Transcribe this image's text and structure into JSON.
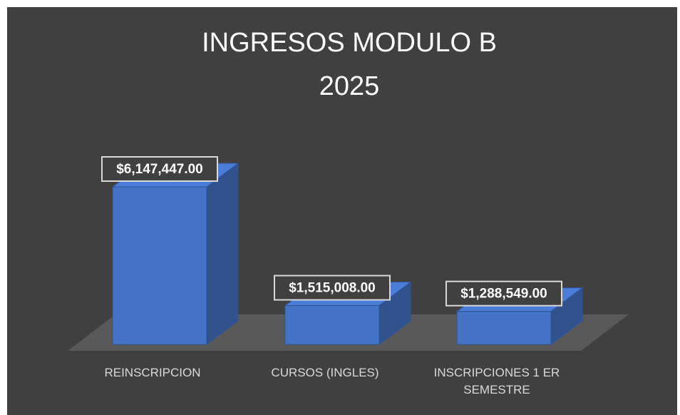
{
  "chart_data": {
    "type": "bar3d",
    "title": [
      "INGRESOS MODULO B",
      "2025"
    ],
    "categories": [
      "REINSCRIPCION",
      "CURSOS (INGLES)",
      "INSCRIPCIONES 1 ER SEMESTRE"
    ],
    "values": [
      6147447,
      1515008,
      1288549
    ],
    "value_labels": [
      "$6,147,447.00",
      "$1,515,008.00",
      "$1,288,549.00"
    ],
    "color": "#4472c4"
  }
}
